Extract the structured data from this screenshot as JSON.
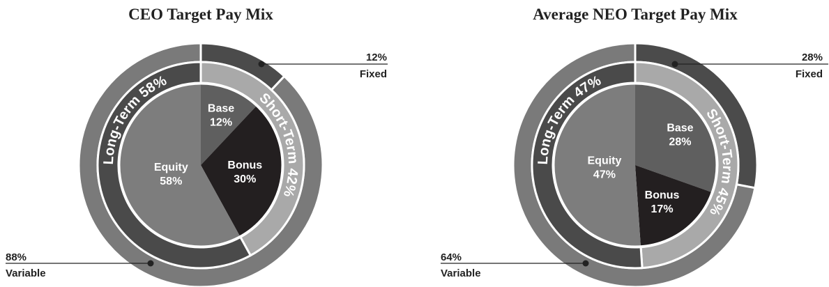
{
  "chart_data": [
    {
      "type": "pie",
      "title": "CEO Target Pay Mix",
      "outer_ring": [
        {
          "name": "Fixed",
          "value": 12,
          "color": "#4b4b4b"
        },
        {
          "name": "Variable",
          "value": 88,
          "color": "#7a7a7a"
        }
      ],
      "middle_ring": [
        {
          "name": "Short-Term",
          "label": "Short-Term 42%",
          "value": 42,
          "color": "#a9a9a9"
        },
        {
          "name": "Long-Term",
          "label": "Long-Term 58%",
          "value": 58,
          "color": "#4a4a4a"
        }
      ],
      "inner_pie": [
        {
          "name": "Base",
          "label": "Base",
          "pct_label": "12%",
          "value": 12,
          "color": "#5f5f5f"
        },
        {
          "name": "Bonus",
          "label": "Bonus",
          "pct_label": "30%",
          "value": 30,
          "color": "#231f20"
        },
        {
          "name": "Equity",
          "label": "Equity",
          "pct_label": "58%",
          "value": 58,
          "color": "#7d7d7d"
        }
      ],
      "callouts": [
        {
          "pct": "12%",
          "label": "Fixed"
        },
        {
          "pct": "88%",
          "label": "Variable"
        }
      ]
    },
    {
      "type": "pie",
      "title": "Average NEO Target Pay Mix",
      "outer_ring": [
        {
          "name": "Fixed",
          "value": 28,
          "color": "#4b4b4b"
        },
        {
          "name": "Variable",
          "value": 64,
          "color": "#7a7a7a"
        }
      ],
      "middle_ring": [
        {
          "name": "Short-Term",
          "label": "Short-Term 45%",
          "value": 45,
          "color": "#a9a9a9"
        },
        {
          "name": "Long-Term",
          "label": "Long-Term 47%",
          "value": 47,
          "color": "#4a4a4a"
        }
      ],
      "inner_pie": [
        {
          "name": "Base",
          "label": "Base",
          "pct_label": "28%",
          "value": 28,
          "color": "#5f5f5f"
        },
        {
          "name": "Bonus",
          "label": "Bonus",
          "pct_label": "17%",
          "value": 17,
          "color": "#231f20"
        },
        {
          "name": "Equity",
          "label": "Equity",
          "pct_label": "47%",
          "value": 47,
          "color": "#7d7d7d"
        }
      ],
      "callouts": [
        {
          "pct": "28%",
          "label": "Fixed"
        },
        {
          "pct": "64%",
          "label": "Variable"
        }
      ]
    }
  ]
}
